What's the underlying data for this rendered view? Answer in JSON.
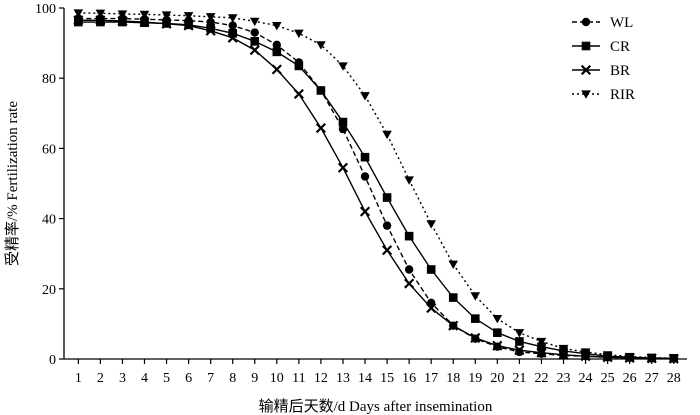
{
  "chart_data": {
    "type": "line",
    "xlabel": "输精后天数/d  Days after insemination",
    "ylabel": "受精率/%  Fertilization rate",
    "x": [
      1,
      2,
      3,
      4,
      5,
      6,
      7,
      8,
      9,
      10,
      11,
      12,
      13,
      14,
      15,
      16,
      17,
      18,
      19,
      20,
      21,
      22,
      23,
      24,
      25,
      26,
      27,
      28
    ],
    "xlim": [
      0.35,
      28.6
    ],
    "ylim": [
      0,
      100
    ],
    "yticks": [
      0,
      20,
      40,
      60,
      80,
      100
    ],
    "grid": false,
    "legend_position": "top-right",
    "series": [
      {
        "name": "WL",
        "marker": "circle",
        "dash": "dashed",
        "values": [
          97,
          97,
          97,
          96.8,
          96.6,
          96.4,
          96,
          95,
          93,
          89.5,
          84.5,
          76.5,
          65.5,
          52,
          38,
          25.5,
          16,
          9.5,
          5.8,
          3.5,
          2,
          1.5,
          1,
          0.8,
          0.5,
          0.3,
          0.2,
          0.1
        ]
      },
      {
        "name": "CR",
        "marker": "square",
        "dash": "solid",
        "values": [
          96,
          96,
          96,
          95.8,
          95.6,
          95.2,
          94.2,
          92.8,
          90.5,
          87.5,
          83.5,
          76.5,
          67.5,
          57.5,
          46,
          35,
          25.5,
          17.5,
          11.5,
          7.5,
          5,
          3.5,
          2.3,
          1.5,
          0.8,
          0.5,
          0.3,
          0.2
        ]
      },
      {
        "name": "BR",
        "marker": "x",
        "dash": "solid",
        "values": [
          96.5,
          96.5,
          96.3,
          96,
          95.5,
          95,
          93.5,
          91.5,
          88,
          82.5,
          75.5,
          65.8,
          54.5,
          42,
          31,
          21.5,
          14.5,
          9.5,
          6,
          3.8,
          2.5,
          1.8,
          1.2,
          0.8,
          0.5,
          0.3,
          0.2,
          0.1
        ]
      },
      {
        "name": "RIR",
        "marker": "triangle-down",
        "dash": "dotted",
        "values": [
          98.6,
          98.5,
          98.3,
          98.2,
          98,
          97.8,
          97.5,
          97.2,
          96.2,
          95,
          92.8,
          89.5,
          83.5,
          75,
          64,
          51,
          38.5,
          27,
          18,
          11.5,
          7.5,
          5,
          3,
          2,
          1.2,
          0.7,
          0.4,
          0.2
        ]
      }
    ]
  }
}
